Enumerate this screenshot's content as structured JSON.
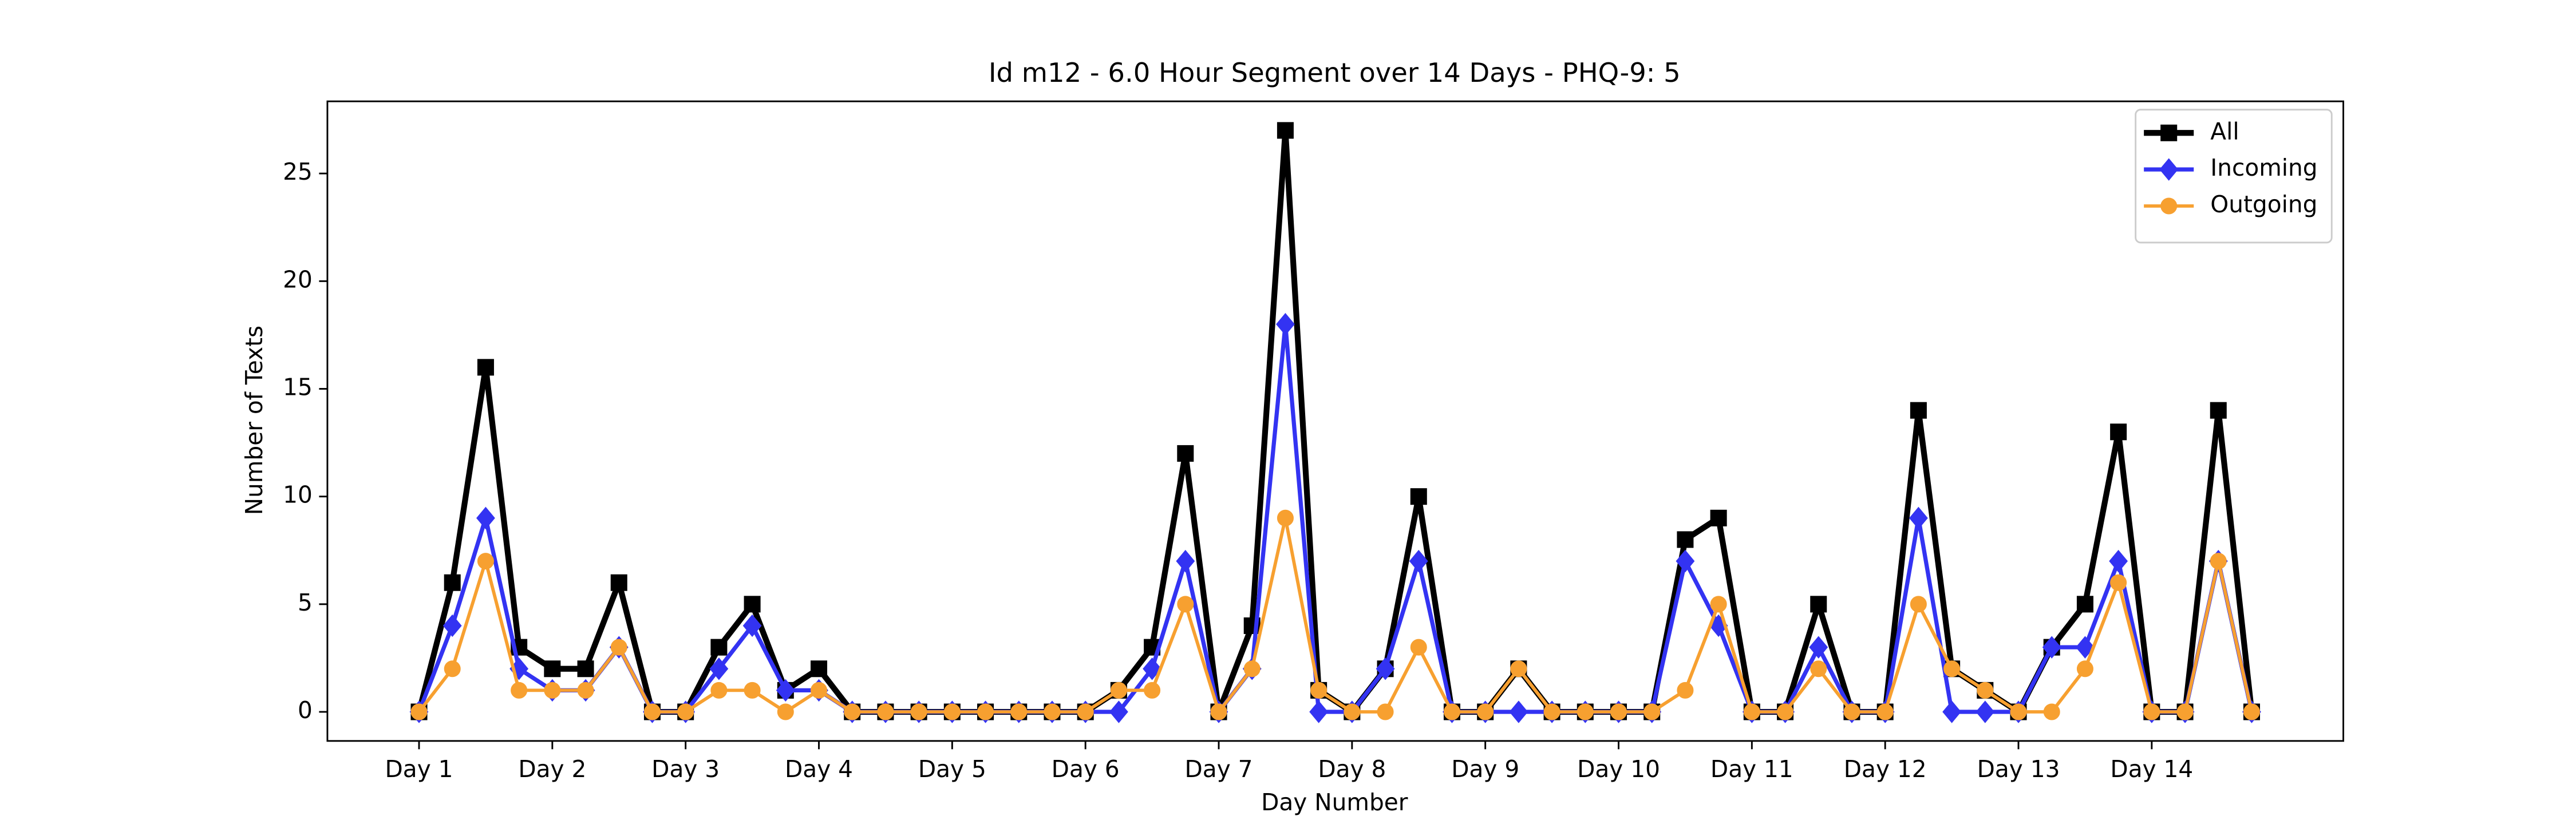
{
  "chart_data": {
    "type": "line",
    "title": "Id m12 - 6.0 Hour Segment over 14 Days - PHQ-9: 5",
    "xlabel": "Day Number",
    "ylabel": "Number of Texts",
    "x": [
      0,
      1,
      2,
      3,
      4,
      5,
      6,
      7,
      8,
      9,
      10,
      11,
      12,
      13,
      14,
      15,
      16,
      17,
      18,
      19,
      20,
      21,
      22,
      23,
      24,
      25,
      26,
      27,
      28,
      29,
      30,
      31,
      32,
      33,
      34,
      35,
      36,
      37,
      38,
      39,
      40,
      41,
      42,
      43,
      44,
      45,
      46,
      47,
      48,
      49,
      50,
      51,
      52,
      53,
      54,
      55
    ],
    "series": [
      {
        "name": "All",
        "color": "#000000",
        "marker": "square",
        "linewidth": 3.5,
        "values": [
          0,
          6,
          16,
          3,
          2,
          2,
          6,
          0,
          0,
          3,
          5,
          1,
          2,
          0,
          0,
          0,
          0,
          0,
          0,
          0,
          0,
          1,
          3,
          12,
          0,
          4,
          27,
          1,
          0,
          2,
          10,
          0,
          0,
          2,
          0,
          0,
          0,
          0,
          8,
          9,
          0,
          0,
          5,
          0,
          0,
          14,
          2,
          1,
          0,
          3,
          5,
          13,
          0,
          0,
          14,
          0
        ]
      },
      {
        "name": "Incoming",
        "color": "#3333f2",
        "marker": "diamond",
        "linewidth": 2.5,
        "values": [
          0,
          4,
          9,
          2,
          1,
          1,
          3,
          0,
          0,
          2,
          4,
          1,
          1,
          0,
          0,
          0,
          0,
          0,
          0,
          0,
          0,
          0,
          2,
          7,
          0,
          2,
          18,
          0,
          0,
          2,
          7,
          0,
          0,
          0,
          0,
          0,
          0,
          0,
          7,
          4,
          0,
          0,
          3,
          0,
          0,
          9,
          0,
          0,
          0,
          3,
          3,
          7,
          0,
          0,
          7,
          0
        ]
      },
      {
        "name": "Outgoing",
        "color": "#f7a030",
        "marker": "circle",
        "linewidth": 2,
        "values": [
          0,
          2,
          7,
          1,
          1,
          1,
          3,
          0,
          0,
          1,
          1,
          0,
          1,
          0,
          0,
          0,
          0,
          0,
          0,
          0,
          0,
          1,
          1,
          5,
          0,
          2,
          9,
          1,
          0,
          0,
          3,
          0,
          0,
          2,
          0,
          0,
          0,
          0,
          1,
          5,
          0,
          0,
          2,
          0,
          0,
          5,
          2,
          1,
          0,
          0,
          2,
          6,
          0,
          0,
          7,
          0
        ]
      }
    ],
    "xlim": [
      -2.75,
      57.75
    ],
    "ylim": [
      -1.35,
      28.35
    ],
    "xticks": [
      {
        "value": 0,
        "label": "Day 1"
      },
      {
        "value": 4,
        "label": "Day 2"
      },
      {
        "value": 8,
        "label": "Day 3"
      },
      {
        "value": 12,
        "label": "Day 4"
      },
      {
        "value": 16,
        "label": "Day 5"
      },
      {
        "value": 20,
        "label": "Day 6"
      },
      {
        "value": 24,
        "label": "Day 7"
      },
      {
        "value": 28,
        "label": "Day 8"
      },
      {
        "value": 32,
        "label": "Day 9"
      },
      {
        "value": 36,
        "label": "Day 10"
      },
      {
        "value": 40,
        "label": "Day 11"
      },
      {
        "value": 44,
        "label": "Day 12"
      },
      {
        "value": 48,
        "label": "Day 13"
      },
      {
        "value": 52,
        "label": "Day 14"
      }
    ],
    "yticks": [
      0,
      5,
      10,
      15,
      20,
      25
    ],
    "grid": false,
    "legend": "upper right"
  }
}
